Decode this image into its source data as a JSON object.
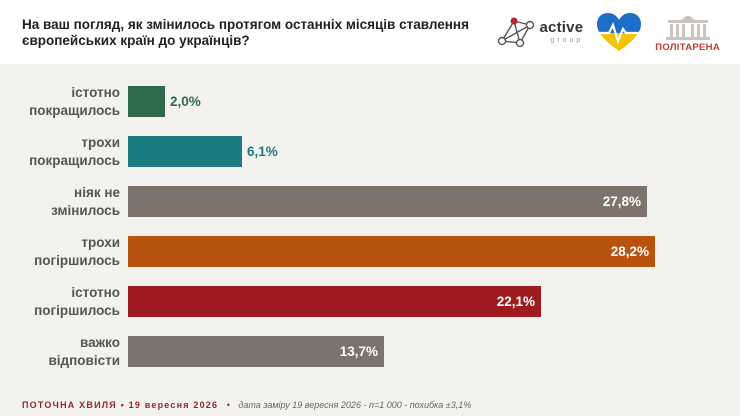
{
  "header": {
    "title": "На ваш погляд, як змінилось протягом останніх місяців ставлення\nєвропейських країн до українців?",
    "logos": {
      "active_name": "active",
      "active_sub": "group",
      "politarena": "ПОЛІТАРЕНА"
    }
  },
  "chart_data": {
    "type": "bar",
    "orientation": "horizontal",
    "title": "На ваш погляд, як змінилось протягом останніх місяців ставлення європейських країн до українців?",
    "categories": [
      "істотно\nпокращилось",
      "трохи\nпокращилось",
      "ніяк не\nзмінилось",
      "трохи\nпогіршилось",
      "істотно\nпогіршилось",
      "важко\nвідповісти"
    ],
    "values": [
      2.0,
      6.1,
      27.8,
      28.2,
      22.1,
      13.7
    ],
    "value_labels": [
      "2,0%",
      "6,1%",
      "27,8%",
      "28,2%",
      "22,1%",
      "13,7%"
    ],
    "colors": [
      "#2f6b4a",
      "#1b7b82",
      "#7b736c",
      "#b8520f",
      "#9e1c20",
      "#7b736c"
    ],
    "xlim": [
      0,
      28.8
    ],
    "grid": false
  },
  "footer": {
    "wave": "ПОТОЧНА ХВИЛЯ • 19 вересня 2026",
    "separator": "•",
    "meta": "дата заміру 19 вересня 2026 - n=1 000 - похибка ±3,1%"
  }
}
